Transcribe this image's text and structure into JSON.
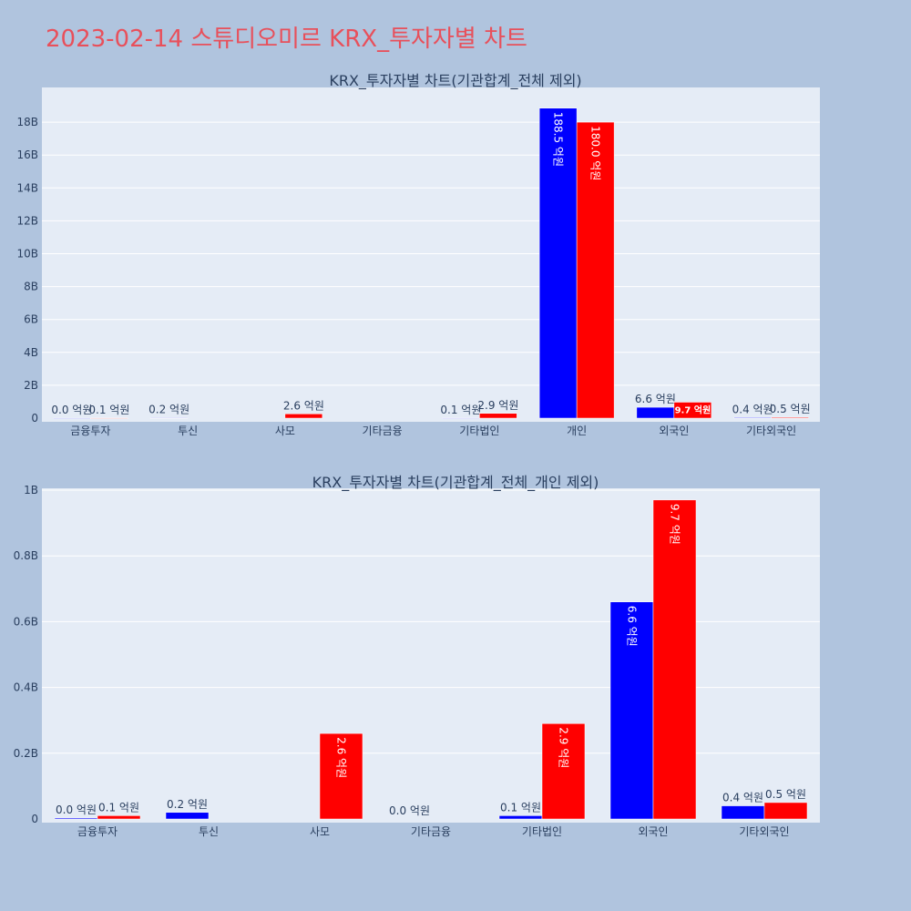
{
  "page": {
    "title": "2023-02-14 스튜디오미르 KRX_투자자별 차트"
  },
  "colors": {
    "series_a": "#0000ff",
    "series_b": "#ff0000",
    "plot_bg": "#e5ecf6",
    "page_bg": "#b0c4de",
    "title": "#e8505b"
  },
  "chart_data": [
    {
      "type": "bar",
      "title": "KRX_투자자별 차트(기관합계_전체 제외)",
      "categories": [
        "금융투자",
        "투신",
        "사모",
        "기타금융",
        "기타법인",
        "개인",
        "외국인",
        "기타외국인"
      ],
      "series": [
        {
          "values": [
            3000000,
            20000000,
            null,
            null,
            10000000,
            18850000000,
            660000000,
            40000000
          ],
          "labels": [
            "0.0 억원",
            "0.2 억원",
            "",
            "",
            "0.1 억원",
            "188.5 억원",
            "6.6 억원",
            "0.4 억원"
          ]
        },
        {
          "values": [
            10000000,
            null,
            260000000,
            null,
            290000000,
            18000000000,
            970000000,
            50000000
          ],
          "labels": [
            "0.1 억원",
            "",
            "2.6 억원",
            "",
            "2.9 억원",
            "180.0 억원",
            "9.7 억원",
            "0.5 억원"
          ]
        }
      ],
      "yticks": [
        "0",
        "2B",
        "4B",
        "6B",
        "8B",
        "10B",
        "12B",
        "14B",
        "16B",
        "18B"
      ],
      "ylim": [
        0,
        20000000000
      ],
      "grid": true
    },
    {
      "type": "bar",
      "title": "KRX_투자자별 차트(기관합계_전체_개인 제외)",
      "categories": [
        "금융투자",
        "투신",
        "사모",
        "기타금융",
        "기타법인",
        "외국인",
        "기타외국인"
      ],
      "series": [
        {
          "values": [
            3000000,
            20000000,
            null,
            0,
            10000000,
            660000000,
            40000000
          ],
          "labels": [
            "0.0 억원",
            "0.2 억원",
            "",
            "0.0 억원",
            "0.1 억원",
            "6.6 억원",
            "0.4 억원"
          ]
        },
        {
          "values": [
            10000000,
            null,
            260000000,
            null,
            290000000,
            970000000,
            50000000
          ],
          "labels": [
            "0.1 억원",
            "",
            "2.6 억원",
            "",
            "2.9 억원",
            "9.7 억원",
            "0.5 억원"
          ]
        }
      ],
      "yticks": [
        "0",
        "0.2B",
        "0.4B",
        "0.6B",
        "0.8B",
        "1B"
      ],
      "ylim": [
        0,
        1000000000
      ],
      "grid": true
    }
  ]
}
